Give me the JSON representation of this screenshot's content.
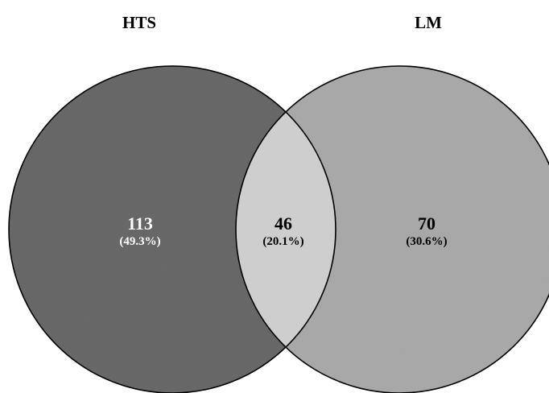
{
  "sets": {
    "left": {
      "name": "HTS",
      "fill": "#6a6a6a"
    },
    "right": {
      "name": "LM",
      "fill": "#acacac"
    }
  },
  "intersection_fill": "#d3d3d3",
  "regions": {
    "left_only": {
      "count": "113",
      "percent": "(49.3%)",
      "text_color": "#ffffff"
    },
    "both": {
      "count": "46",
      "percent": "(20.1%)",
      "text_color": "#000000"
    },
    "right_only": {
      "count": "70",
      "percent": "(30.6%)",
      "text_color": "#000000"
    }
  }
}
